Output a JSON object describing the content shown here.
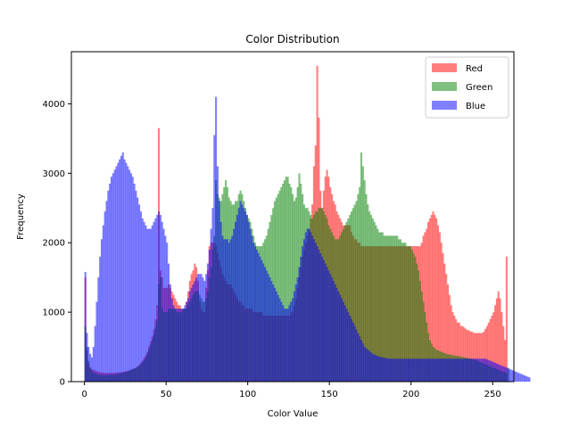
{
  "chart_data": {
    "type": "bar",
    "title": "Color Distribution",
    "xlabel": "Color Value",
    "ylabel": "Frequency",
    "xlim": [
      -8,
      263
    ],
    "ylim": [
      0,
      4750
    ],
    "xticks": [
      0,
      50,
      100,
      150,
      200,
      250
    ],
    "yticks": [
      0,
      1000,
      2000,
      3000,
      4000
    ],
    "legend_position": "top-right",
    "bin_start": 0,
    "bin_width": 1,
    "bins": 256,
    "series": [
      {
        "name": "Red",
        "color": "#ff0000",
        "opacity": 0.5,
        "values": [
          1500,
          450,
          260,
          200,
          180,
          170,
          160,
          150,
          140,
          135,
          130,
          128,
          125,
          125,
          125,
          125,
          125,
          125,
          128,
          130,
          130,
          132,
          135,
          140,
          145,
          150,
          155,
          160,
          170,
          180,
          190,
          200,
          220,
          240,
          270,
          300,
          340,
          380,
          430,
          500,
          580,
          650,
          750,
          900,
          1100,
          3650,
          1600,
          1500,
          1350,
          1350,
          1350,
          1400,
          1350,
          1300,
          1250,
          1200,
          1150,
          1100,
          1100,
          1050,
          1050,
          1050,
          1150,
          1300,
          1450,
          1550,
          1600,
          1700,
          1650,
          1450,
          1150,
          1050,
          1000,
          1000,
          1350,
          1600,
          1950,
          2000,
          2000,
          2000,
          1950,
          1850,
          1750,
          1650,
          1550,
          1500,
          1450,
          1400,
          1400,
          1400,
          1350,
          1300,
          1250,
          1200,
          1150,
          1150,
          1100,
          1100,
          1050,
          1050,
          1050,
          1050,
          1050,
          1000,
          1000,
          1000,
          1000,
          1000,
          1000,
          950,
          950,
          950,
          950,
          950,
          950,
          950,
          950,
          950,
          950,
          950,
          950,
          950,
          950,
          950,
          950,
          950,
          1000,
          1000,
          1100,
          1200,
          1350,
          1500,
          1650,
          1800,
          1900,
          2000,
          2100,
          2200,
          2350,
          2550,
          3100,
          3400,
          4550,
          3800,
          2750,
          2500,
          2750,
          2950,
          3050,
          2950,
          2800,
          2700,
          2600,
          2550,
          2450,
          2400,
          2350,
          2300,
          2250,
          2250,
          2250,
          2250,
          2250,
          2150,
          2100,
          2050,
          2050,
          2000,
          2000,
          1950,
          1950,
          1950,
          1950,
          1950,
          1950,
          1950,
          1950,
          1950,
          1950,
          1950,
          1950,
          1950,
          1950,
          1950,
          1950,
          1950,
          1950,
          1950,
          1950,
          1950,
          1950,
          1950,
          1950,
          1950,
          1950,
          1950,
          1950,
          1950,
          1950,
          1950,
          1950,
          1950,
          1950,
          1950,
          1950,
          1950,
          2000,
          2100,
          2150,
          2200,
          2300,
          2350,
          2400,
          2450,
          2400,
          2350,
          2250,
          2150,
          2000,
          1850,
          1700,
          1550,
          1400,
          1250,
          1100,
          1000,
          950,
          900,
          850,
          850,
          800,
          800,
          780,
          760,
          740,
          740,
          720,
          720,
          700,
          700,
          700,
          700,
          700,
          700,
          720,
          760,
          800,
          850,
          900,
          950,
          1000,
          1100,
          1200,
          1300,
          1200,
          1000,
          800,
          600,
          1800
        ]
      },
      {
        "name": "Green",
        "color": "#008000",
        "opacity": 0.5,
        "values": [
          800,
          500,
          300,
          200,
          150,
          130,
          120,
          110,
          105,
          100,
          95,
          95,
          95,
          95,
          95,
          100,
          100,
          100,
          100,
          105,
          110,
          115,
          120,
          125,
          130,
          140,
          150,
          160,
          170,
          180,
          190,
          200,
          210,
          230,
          250,
          280,
          310,
          350,
          400,
          460,
          530,
          600,
          680,
          780,
          880,
          1400,
          1500,
          1050,
          1000,
          1000,
          1000,
          1050,
          1050,
          1050,
          1050,
          1050,
          1000,
          1000,
          1000,
          1000,
          1050,
          1050,
          1050,
          1100,
          1150,
          1200,
          1250,
          1300,
          1300,
          1300,
          1250,
          1200,
          1150,
          1150,
          1200,
          1300,
          1500,
          1650,
          1900,
          2100,
          2900,
          2700,
          2650,
          2600,
          2700,
          2800,
          2900,
          2800,
          2650,
          2600,
          2550,
          2550,
          2600,
          2600,
          2700,
          2750,
          2700,
          2600,
          2500,
          2400,
          2350,
          2300,
          2200,
          2100,
          2000,
          1950,
          1950,
          1950,
          1950,
          2000,
          2050,
          2100,
          2200,
          2300,
          2400,
          2500,
          2600,
          2650,
          2700,
          2750,
          2800,
          2850,
          2900,
          2950,
          2950,
          2850,
          2800,
          2700,
          2600,
          2650,
          2800,
          3000,
          2850,
          2700,
          2550,
          2500,
          2500,
          2450,
          2400,
          2350,
          2400,
          2450,
          2450,
          2500,
          2500,
          2500,
          2450,
          2400,
          2350,
          2250,
          2200,
          2150,
          2100,
          2050,
          2050,
          2050,
          2100,
          2150,
          2200,
          2250,
          2300,
          2350,
          2400,
          2450,
          2500,
          2550,
          2600,
          2700,
          2800,
          3300,
          3100,
          2900,
          2700,
          2550,
          2450,
          2400,
          2350,
          2300,
          2250,
          2200,
          2150,
          2150,
          2150,
          2100,
          2100,
          2100,
          2100,
          2100,
          2100,
          2100,
          2100,
          2100,
          2050,
          2050,
          2000,
          2000,
          2000,
          1950,
          1950,
          1950,
          1900,
          1850,
          1800,
          1700,
          1600,
          1450,
          1300,
          1150,
          1000,
          850,
          700,
          600,
          550,
          500,
          480,
          460,
          450,
          440,
          430,
          420,
          410,
          400,
          395,
          390,
          385,
          380,
          375,
          370,
          370,
          365,
          360,
          355,
          350,
          345,
          340,
          335,
          330,
          325,
          320,
          310,
          300,
          290,
          280,
          270,
          260,
          250,
          240,
          230,
          220,
          210,
          200,
          190,
          180,
          170,
          160,
          150,
          140,
          130,
          120,
          200
        ]
      },
      {
        "name": "Blue",
        "color": "#0000ff",
        "opacity": 0.5,
        "values": [
          1580,
          700,
          500,
          400,
          350,
          500,
          800,
          1150,
          1500,
          1800,
          2050,
          2250,
          2450,
          2600,
          2750,
          2850,
          2950,
          3000,
          3050,
          3100,
          3150,
          3200,
          3250,
          3300,
          3200,
          3150,
          3100,
          3050,
          3000,
          2950,
          2850,
          2750,
          2650,
          2550,
          2450,
          2350,
          2300,
          2250,
          2200,
          2200,
          2200,
          2250,
          2300,
          2350,
          2400,
          2450,
          2400,
          2300,
          2200,
          2100,
          2000,
          1700,
          1400,
          1200,
          1100,
          1050,
          1050,
          1050,
          1050,
          1050,
          1050,
          1100,
          1150,
          1200,
          1300,
          1350,
          1400,
          1450,
          1500,
          1550,
          1550,
          1550,
          1500,
          1450,
          1550,
          1700,
          1900,
          2200,
          2500,
          3550,
          4100,
          3100,
          2600,
          2300,
          2100,
          2050,
          2050,
          2050,
          2000,
          2050,
          2100,
          2200,
          2300,
          2400,
          2500,
          2600,
          2550,
          2500,
          2450,
          2400,
          2300,
          2200,
          2100,
          2000,
          1950,
          1900,
          1850,
          1800,
          1750,
          1700,
          1650,
          1600,
          1550,
          1500,
          1450,
          1400,
          1350,
          1300,
          1250,
          1200,
          1150,
          1100,
          1050,
          1050,
          1050,
          1100,
          1150,
          1200,
          1300,
          1400,
          1500,
          1650,
          1800,
          1950,
          2050,
          2150,
          2200,
          2200,
          2150,
          2100,
          2050,
          2000,
          1950,
          1900,
          1850,
          1800,
          1750,
          1700,
          1650,
          1600,
          1550,
          1500,
          1450,
          1400,
          1350,
          1300,
          1250,
          1200,
          1150,
          1100,
          1050,
          1000,
          950,
          900,
          850,
          800,
          750,
          700,
          650,
          600,
          550,
          500,
          480,
          460,
          440,
          420,
          400,
          390,
          380,
          370,
          360,
          355,
          350,
          345,
          340,
          335,
          330,
          330,
          330,
          330,
          330,
          330,
          330,
          330,
          330,
          330,
          330,
          330,
          330,
          330,
          330,
          330,
          330,
          330,
          330,
          330,
          330,
          330,
          330,
          330,
          330,
          330,
          330,
          330,
          330,
          330,
          330,
          330,
          330,
          330,
          330,
          330,
          330,
          330,
          330,
          330,
          330,
          330,
          330,
          330,
          330,
          330,
          330,
          330,
          330,
          330,
          330,
          330,
          330,
          330,
          330,
          330,
          330,
          330,
          330,
          330,
          320,
          310,
          300,
          290,
          280,
          270,
          260,
          250,
          240,
          230,
          220,
          210,
          200,
          190,
          180,
          170,
          160,
          150,
          140,
          130,
          120,
          110,
          100,
          90,
          80,
          70,
          60
        ]
      }
    ]
  }
}
